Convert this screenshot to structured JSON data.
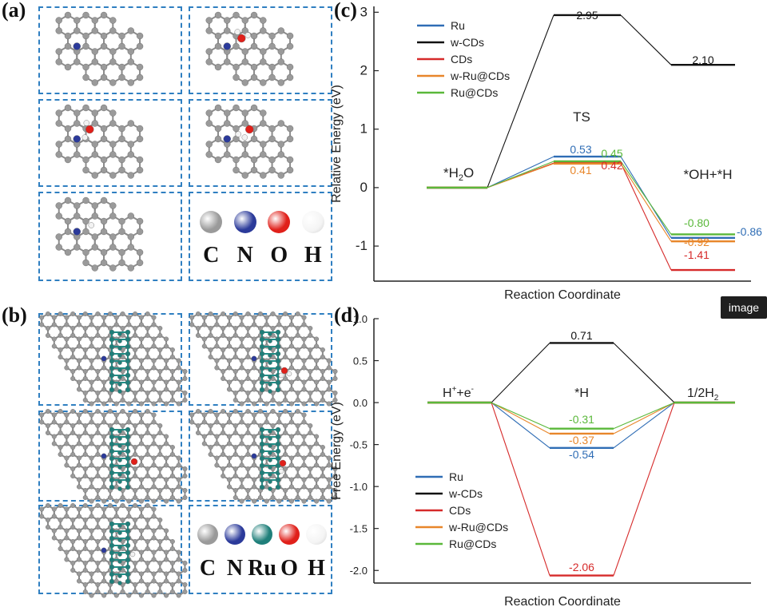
{
  "panels": {
    "a": {
      "label": "(a)",
      "elements": [
        "C",
        "N",
        "O",
        "H"
      ]
    },
    "b": {
      "label": "(b)",
      "elements": [
        "C",
        "N",
        "Ru",
        "O",
        "H"
      ]
    },
    "c": {
      "label": "(c)"
    },
    "d": {
      "label": "(d)"
    }
  },
  "element_colors": {
    "C": "#9a9a9a",
    "N": "#2b3a9a",
    "Ru": "#1f7f7a",
    "O": "#e0201a",
    "H": "#f2f2f2"
  },
  "badge": {
    "text": "image"
  },
  "chart_data": [
    {
      "type": "line",
      "panel": "c",
      "xlabel": "Reaction Coordinate",
      "ylabel": "Relative Energy (eV)",
      "ylim": [
        -1.6,
        3.1
      ],
      "yticks": [
        -1,
        0,
        1,
        2,
        3
      ],
      "ytick_labels": [
        "-1",
        "0",
        "1",
        "2",
        "3"
      ],
      "stages": [
        "*H2O",
        "TS",
        "*OH+*H"
      ],
      "stage_labels": [
        {
          "text": "*H",
          "sub": "2",
          "after": "O",
          "stage": 0
        },
        {
          "text": "TS",
          "sub": "",
          "after": "",
          "stage": 1
        },
        {
          "text": "*OH+*H",
          "sub": "",
          "after": "",
          "stage": 2
        }
      ],
      "series": [
        {
          "name": "Ru",
          "color": "#2f6db5",
          "values": [
            0,
            0.53,
            -0.86
          ],
          "labels": [
            "",
            "0.53",
            "-0.86"
          ]
        },
        {
          "name": "w-CDs",
          "color": "#111111",
          "values": [
            0,
            2.95,
            2.1
          ],
          "labels": [
            "",
            "2.95",
            "2.10"
          ]
        },
        {
          "name": "CDs",
          "color": "#d62a2a",
          "values": [
            0,
            0.42,
            -1.41
          ],
          "labels": [
            "",
            "0.42",
            "-1.41"
          ]
        },
        {
          "name": "w-Ru@CDs",
          "color": "#e8862a",
          "values": [
            0,
            0.41,
            -0.92
          ],
          "labels": [
            "",
            "0.41",
            "-0.92"
          ]
        },
        {
          "name": "Ru@CDs",
          "color": "#5ab83a",
          "values": [
            0,
            0.45,
            -0.8
          ],
          "labels": [
            "",
            "0.45",
            "-0.80"
          ]
        }
      ],
      "legend": "top-left"
    },
    {
      "type": "line",
      "panel": "d",
      "xlabel": "Reaction Coordinate",
      "ylabel": "Free Energy (eV)",
      "ylim": [
        -2.15,
        1.0
      ],
      "yticks": [
        1.0,
        0.5,
        0.0,
        -0.5,
        -1.0,
        -1.5,
        -2.0
      ],
      "ytick_labels": [
        "1.0",
        "0.5",
        "0.0",
        "-0.5",
        "-1.0",
        "-1.5",
        "-2.0"
      ],
      "stages": [
        "H++e-",
        "*H",
        "1/2H2"
      ],
      "series": [
        {
          "name": "Ru",
          "color": "#2f6db5",
          "values": [
            0,
            -0.54,
            0
          ],
          "labels": [
            "",
            "-0.54",
            ""
          ]
        },
        {
          "name": "w-CDs",
          "color": "#111111",
          "values": [
            0,
            0.71,
            0
          ],
          "labels": [
            "",
            "0.71",
            ""
          ]
        },
        {
          "name": "CDs",
          "color": "#d62a2a",
          "values": [
            0,
            -2.06,
            0
          ],
          "labels": [
            "",
            "-2.06",
            ""
          ]
        },
        {
          "name": "w-Ru@CDs",
          "color": "#e8862a",
          "values": [
            0,
            -0.37,
            0
          ],
          "labels": [
            "",
            "-0.37",
            ""
          ]
        },
        {
          "name": "Ru@CDs",
          "color": "#5ab83a",
          "values": [
            0,
            -0.31,
            0
          ],
          "labels": [
            "",
            "-0.31",
            ""
          ]
        }
      ],
      "legend": "bottom-left"
    }
  ]
}
